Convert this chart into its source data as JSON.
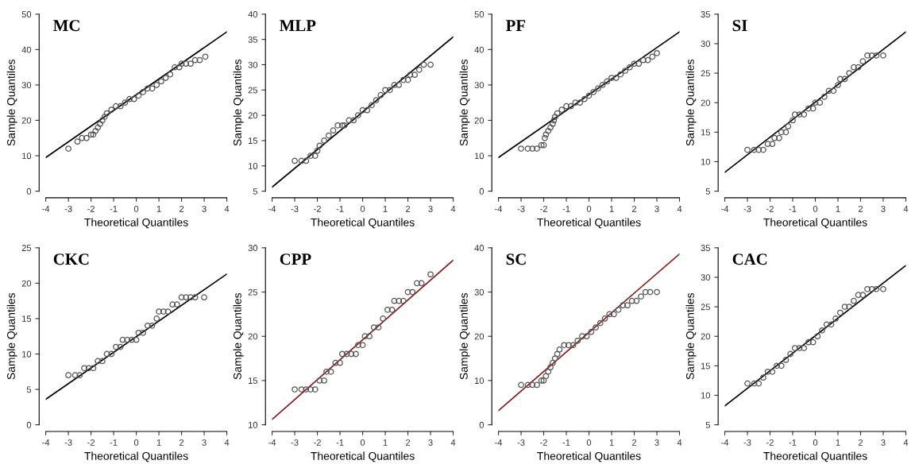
{
  "chart_data": [
    {
      "type": "scatter",
      "title": "MC",
      "xlabel": "Theoretical Quantiles",
      "ylabel": "Sample Quantiles",
      "xlim": [
        -4,
        4
      ],
      "xticks": [
        -4,
        -3,
        -2,
        -1,
        0,
        1,
        2,
        3,
        4
      ],
      "ylim": [
        0,
        50
      ],
      "yticks": [
        0,
        10,
        20,
        30,
        40,
        50
      ],
      "grid": false,
      "legend": false,
      "series": [
        {
          "marker": "circle",
          "color": "#555555",
          "x": [
            -3,
            -2.6,
            -2.4,
            -2.2,
            -2.0,
            -1.9,
            -1.8,
            -1.7,
            -1.6,
            -1.5,
            -1.4,
            -1.3,
            -1.1,
            -0.9,
            -0.7,
            -0.5,
            -0.3,
            -0.1,
            0.1,
            0.3,
            0.5,
            0.7,
            0.9,
            1.1,
            1.3,
            1.5,
            1.7,
            1.9,
            2.0,
            2.2,
            2.4,
            2.6,
            2.8,
            3.05
          ],
          "values": [
            12,
            14,
            15,
            15,
            16,
            16,
            17,
            18,
            19,
            20,
            21,
            22,
            23,
            24,
            24,
            25,
            26,
            26,
            27,
            28,
            29,
            29,
            30,
            31,
            32,
            33,
            35,
            35,
            36,
            36,
            36,
            37,
            37,
            38
          ]
        },
        {
          "type": "line",
          "color": "#000000",
          "x": [
            -4,
            4
          ],
          "values": [
            9.5,
            45
          ]
        }
      ]
    },
    {
      "type": "scatter",
      "title": "MLP",
      "xlabel": "Theoretical Quantiles",
      "ylabel": "Sample Quantiles",
      "xlim": [
        -4,
        4
      ],
      "xticks": [
        -4,
        -3,
        -2,
        -1,
        0,
        1,
        2,
        3,
        4
      ],
      "ylim": [
        5,
        40
      ],
      "yticks": [
        5,
        10,
        15,
        20,
        25,
        30,
        35,
        40
      ],
      "grid": false,
      "legend": false,
      "series": [
        {
          "marker": "circle",
          "color": "#555555",
          "x": [
            -3,
            -2.7,
            -2.5,
            -2.3,
            -2.1,
            -2.0,
            -1.9,
            -1.7,
            -1.5,
            -1.3,
            -1.1,
            -0.9,
            -0.8,
            -0.6,
            -0.4,
            -0.2,
            0,
            0.2,
            0.4,
            0.6,
            0.8,
            1.0,
            1.2,
            1.4,
            1.6,
            1.8,
            2.0,
            2.1,
            2.3,
            2.5,
            2.7,
            3.0
          ],
          "values": [
            11,
            11,
            11,
            12,
            12,
            13,
            14,
            15,
            16,
            17,
            18,
            18,
            18,
            19,
            19,
            20,
            21,
            21,
            22,
            23,
            24,
            25,
            25,
            26,
            26,
            27,
            27,
            28,
            28,
            29,
            30,
            30
          ]
        },
        {
          "type": "line",
          "color": "#000000",
          "x": [
            -4,
            4
          ],
          "values": [
            5.8,
            35.5
          ]
        }
      ]
    },
    {
      "type": "scatter",
      "title": "PF",
      "xlabel": "Theoretical Quantiles",
      "ylabel": "Sample Quantiles",
      "xlim": [
        -4,
        4
      ],
      "xticks": [
        -4,
        -3,
        -2,
        -1,
        0,
        1,
        2,
        3,
        4
      ],
      "ylim": [
        0,
        50
      ],
      "yticks": [
        0,
        10,
        20,
        30,
        40,
        50
      ],
      "grid": false,
      "legend": false,
      "series": [
        {
          "marker": "circle",
          "color": "#555555",
          "x": [
            -3,
            -2.7,
            -2.5,
            -2.3,
            -2.1,
            -2.0,
            -1.95,
            -1.9,
            -1.8,
            -1.7,
            -1.6,
            -1.55,
            -1.5,
            -1.4,
            -1.2,
            -1.0,
            -0.8,
            -0.6,
            -0.4,
            -0.2,
            0,
            0.2,
            0.4,
            0.6,
            0.8,
            1.0,
            1.2,
            1.4,
            1.6,
            1.8,
            2.0,
            2.2,
            2.4,
            2.6,
            2.8,
            3.0
          ],
          "values": [
            12,
            12,
            12,
            12,
            13,
            13,
            15,
            16,
            17,
            18,
            19,
            20,
            21,
            22,
            23,
            24,
            24,
            25,
            25,
            26,
            27,
            28,
            29,
            30,
            31,
            32,
            32,
            33,
            34,
            35,
            36,
            36,
            37,
            37,
            38,
            39
          ]
        },
        {
          "type": "line",
          "color": "#000000",
          "x": [
            -4,
            4
          ],
          "values": [
            9.5,
            45
          ]
        }
      ]
    },
    {
      "type": "scatter",
      "title": "SI",
      "xlabel": "Theoretical Quantiles",
      "ylabel": "Sample Quantiles",
      "xlim": [
        -4,
        4
      ],
      "xticks": [
        -4,
        -3,
        -2,
        -1,
        0,
        1,
        2,
        3,
        4
      ],
      "ylim": [
        5,
        35
      ],
      "yticks": [
        5,
        10,
        15,
        20,
        25,
        30,
        35
      ],
      "grid": false,
      "legend": false,
      "series": [
        {
          "marker": "circle",
          "color": "#555555",
          "x": [
            -3,
            -2.7,
            -2.5,
            -2.3,
            -2.1,
            -1.9,
            -1.8,
            -1.6,
            -1.5,
            -1.3,
            -1.2,
            -1.0,
            -0.9,
            -0.7,
            -0.5,
            -0.3,
            -0.1,
            0,
            0.2,
            0.4,
            0.6,
            0.8,
            1.0,
            1.1,
            1.3,
            1.5,
            1.7,
            1.9,
            2.1,
            2.3,
            2.5,
            2.7,
            3.0
          ],
          "values": [
            12,
            12,
            12,
            12,
            13,
            13,
            14,
            14,
            15,
            15,
            16,
            17,
            18,
            18,
            18,
            19,
            19,
            20,
            20,
            21,
            22,
            22,
            23,
            24,
            24,
            25,
            26,
            26,
            27,
            28,
            28,
            28,
            28
          ]
        },
        {
          "type": "line",
          "color": "#000000",
          "x": [
            -4,
            4
          ],
          "values": [
            8.2,
            32
          ]
        }
      ]
    },
    {
      "type": "scatter",
      "title": "CKC",
      "xlabel": "Theoretical Quantiles",
      "ylabel": "Sample Quantiles",
      "xlim": [
        -4,
        4
      ],
      "xticks": [
        -4,
        -3,
        -2,
        -1,
        0,
        1,
        2,
        3,
        4
      ],
      "ylim": [
        0,
        25
      ],
      "yticks": [
        0,
        5,
        10,
        15,
        20,
        25
      ],
      "grid": false,
      "legend": false,
      "series": [
        {
          "marker": "circle",
          "color": "#555555",
          "x": [
            -3,
            -2.7,
            -2.5,
            -2.3,
            -2.1,
            -1.9,
            -1.7,
            -1.5,
            -1.3,
            -1.1,
            -0.9,
            -0.7,
            -0.6,
            -0.4,
            -0.2,
            0,
            0.1,
            0.3,
            0.5,
            0.7,
            0.9,
            1.0,
            1.2,
            1.4,
            1.6,
            1.8,
            2.0,
            2.2,
            2.4,
            2.6,
            3.0
          ],
          "values": [
            7,
            7,
            7,
            8,
            8,
            8,
            9,
            9,
            10,
            10,
            11,
            11,
            12,
            12,
            12,
            12,
            13,
            13,
            14,
            14,
            15,
            16,
            16,
            16,
            17,
            17,
            18,
            18,
            18,
            18,
            18
          ]
        },
        {
          "type": "line",
          "color": "#000000",
          "x": [
            -4,
            4
          ],
          "values": [
            3.6,
            21.3
          ]
        }
      ]
    },
    {
      "type": "scatter",
      "title": "CPP",
      "xlabel": "Theoretical Quantiles",
      "ylabel": "Sample Quantiles",
      "xlim": [
        -4,
        4
      ],
      "xticks": [
        -4,
        -3,
        -2,
        -1,
        0,
        1,
        2,
        3,
        4
      ],
      "ylim": [
        10,
        30
      ],
      "yticks": [
        10,
        15,
        20,
        25,
        30
      ],
      "grid": false,
      "legend": false,
      "series": [
        {
          "marker": "circle",
          "color": "#555555",
          "x": [
            -3,
            -2.7,
            -2.5,
            -2.3,
            -2.1,
            -1.9,
            -1.7,
            -1.6,
            -1.4,
            -1.2,
            -1.0,
            -0.9,
            -0.7,
            -0.5,
            -0.3,
            -0.2,
            0,
            0.1,
            0.3,
            0.5,
            0.7,
            0.9,
            1.1,
            1.3,
            1.4,
            1.6,
            1.8,
            2.0,
            2.2,
            2.4,
            2.6,
            3.0
          ],
          "values": [
            14,
            14,
            14,
            14,
            14,
            15,
            15,
            16,
            16,
            17,
            17,
            18,
            18,
            18,
            18,
            19,
            19,
            20,
            20,
            21,
            21,
            22,
            23,
            23,
            24,
            24,
            24,
            25,
            25,
            26,
            26,
            27
          ]
        },
        {
          "type": "line",
          "color": "#8b1a1a",
          "x": [
            -4,
            4
          ],
          "values": [
            10.6,
            28.6
          ]
        }
      ]
    },
    {
      "type": "scatter",
      "title": "SC",
      "xlabel": "Theoretical Quantiles",
      "ylabel": "Sample Quantiles",
      "xlim": [
        -4,
        4
      ],
      "xticks": [
        -4,
        -3,
        -2,
        -1,
        0,
        1,
        2,
        3,
        4
      ],
      "ylim": [
        0,
        40
      ],
      "yticks": [
        0,
        10,
        20,
        30,
        40
      ],
      "grid": false,
      "legend": false,
      "series": [
        {
          "marker": "circle",
          "color": "#555555",
          "x": [
            -3,
            -2.7,
            -2.5,
            -2.3,
            -2.1,
            -2.0,
            -1.9,
            -1.8,
            -1.7,
            -1.6,
            -1.5,
            -1.4,
            -1.3,
            -1.1,
            -0.9,
            -0.7,
            -0.5,
            -0.3,
            -0.1,
            0.1,
            0.3,
            0.5,
            0.7,
            0.9,
            1.1,
            1.3,
            1.5,
            1.7,
            1.9,
            2.1,
            2.3,
            2.5,
            2.7,
            3.0
          ],
          "values": [
            9,
            9,
            9,
            9,
            10,
            10,
            11,
            12,
            13,
            14,
            15,
            16,
            17,
            18,
            18,
            18,
            19,
            20,
            20,
            21,
            22,
            23,
            24,
            25,
            25,
            26,
            27,
            27,
            28,
            28,
            29,
            30,
            30,
            30
          ]
        },
        {
          "type": "line",
          "color": "#8b1a1a",
          "x": [
            -4,
            4
          ],
          "values": [
            3.2,
            38.6
          ]
        }
      ]
    },
    {
      "type": "scatter",
      "title": "CAC",
      "xlabel": "Theoretical Quantiles",
      "ylabel": "Sample Quantiles",
      "xlim": [
        -4,
        4
      ],
      "xticks": [
        -4,
        -3,
        -2,
        -1,
        0,
        1,
        2,
        3,
        4
      ],
      "ylim": [
        5,
        35
      ],
      "yticks": [
        5,
        10,
        15,
        20,
        25,
        30,
        35
      ],
      "grid": false,
      "legend": false,
      "series": [
        {
          "marker": "circle",
          "color": "#555555",
          "x": [
            -3,
            -2.7,
            -2.5,
            -2.3,
            -2.1,
            -1.9,
            -1.7,
            -1.5,
            -1.3,
            -1.1,
            -0.9,
            -0.7,
            -0.5,
            -0.3,
            -0.1,
            0.1,
            0.3,
            0.5,
            0.7,
            0.9,
            1.1,
            1.3,
            1.5,
            1.7,
            1.9,
            2.1,
            2.3,
            2.5,
            2.7,
            3.0
          ],
          "values": [
            12,
            12,
            12,
            13,
            14,
            14,
            15,
            15,
            16,
            17,
            18,
            18,
            18,
            19,
            19,
            20,
            21,
            22,
            22,
            23,
            24,
            25,
            25,
            26,
            27,
            27,
            28,
            28,
            28,
            28
          ]
        },
        {
          "type": "line",
          "color": "#000000",
          "x": [
            -4,
            4
          ],
          "values": [
            8.2,
            32
          ]
        }
      ]
    }
  ]
}
